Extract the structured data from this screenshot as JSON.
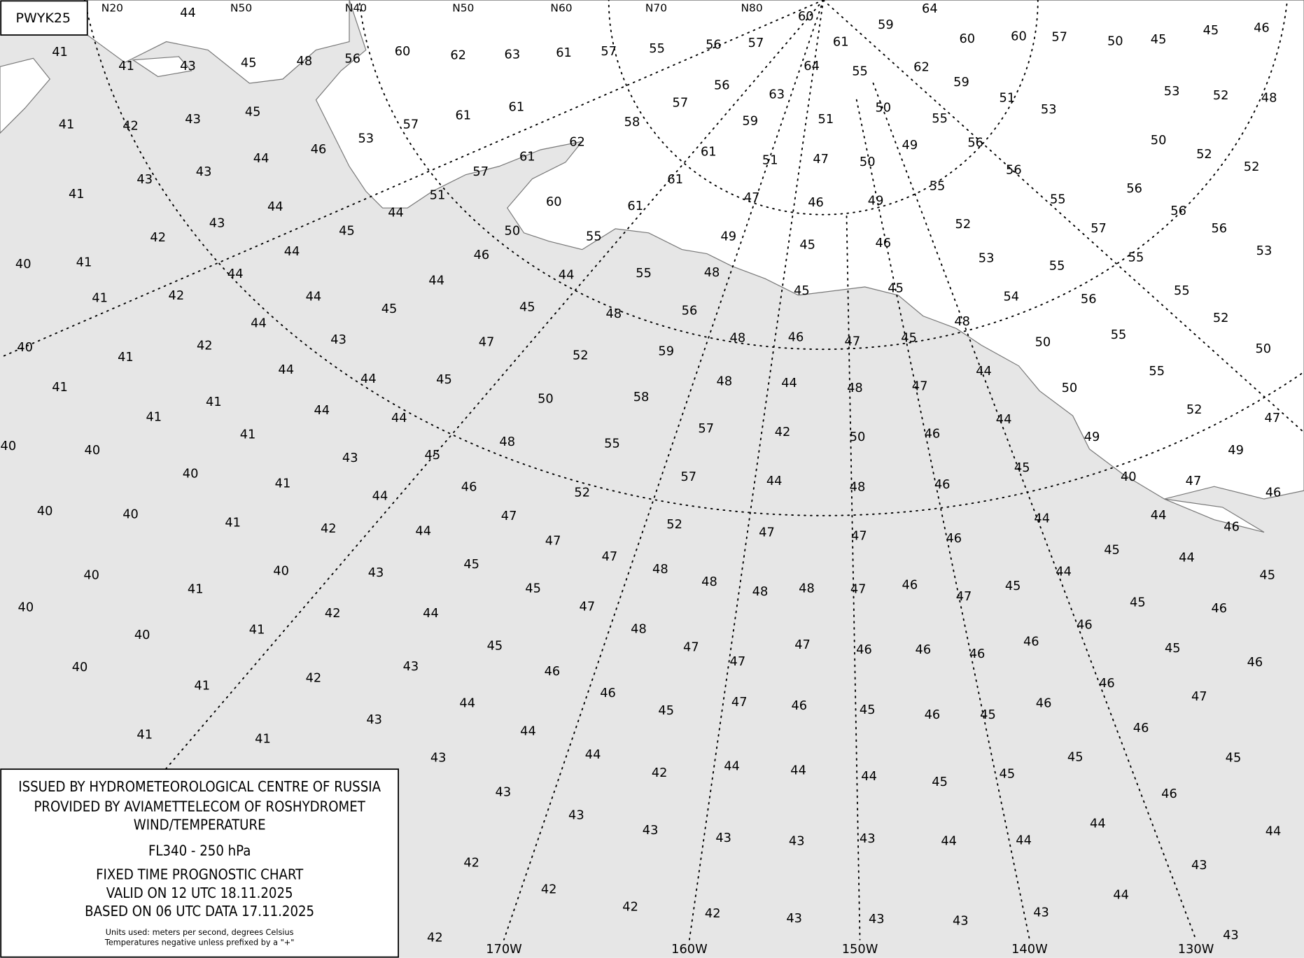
{
  "header": {
    "code": "PWYK25"
  },
  "legend": {
    "lines": [
      "ISSUED BY HYDROMETEOROLOGICAL CENTRE OF RUSSIA",
      "PROVIDED BY AVIAMETTELECOM OF ROSHYDROMET",
      "WIND/TEMPERATURE",
      "FL340 - 250 hPa",
      "FIXED TIME PROGNOSTIC CHART",
      "VALID ON 12 UTC 18.11.2025",
      "BASED ON 06 UTC DATA 17.11.2025"
    ],
    "notes": [
      "Units used: meters per second, degrees Celsius",
      "Temperatures negative unless prefixed by a \"+\""
    ]
  },
  "longitude_labels": [
    "170W",
    "160W",
    "150W",
    "140W",
    "130W"
  ],
  "latitude_labels": [
    "N20",
    "N50",
    "N40",
    "N50",
    "N60",
    "N70",
    "N80"
  ],
  "temperatures": [
    44,
    41,
    41,
    43,
    45,
    48,
    56,
    60,
    62,
    63,
    61,
    57,
    55,
    56,
    57,
    60,
    61,
    59,
    64,
    60,
    60,
    57,
    50,
    45,
    45,
    46,
    41,
    42,
    43,
    45,
    46,
    53,
    57,
    61,
    61,
    62,
    58,
    57,
    56,
    59,
    63,
    64,
    55,
    50,
    62,
    59,
    51,
    53,
    53,
    52,
    48,
    43,
    43,
    44,
    41,
    43,
    42,
    44,
    45,
    44,
    51,
    57,
    61,
    60,
    50,
    46,
    55,
    61,
    61,
    61,
    51,
    51,
    47,
    50,
    49,
    55,
    56,
    56,
    55,
    47,
    46,
    49,
    55,
    56,
    56,
    50,
    52,
    52,
    40,
    41,
    41,
    42,
    44,
    44,
    44,
    45,
    44,
    45,
    44,
    48,
    55,
    56,
    49,
    48,
    48,
    45,
    45,
    46,
    45,
    52,
    53,
    54,
    55,
    57,
    55,
    56,
    55,
    52,
    56,
    53,
    40,
    41,
    41,
    42,
    44,
    43,
    44,
    44,
    44,
    45,
    47,
    52,
    50,
    58,
    59,
    48,
    46,
    47,
    45,
    48,
    44,
    48,
    47,
    44,
    50,
    50,
    55,
    55,
    50,
    40,
    40,
    41,
    41,
    41,
    43,
    44,
    45,
    48,
    55,
    57,
    42,
    50,
    46,
    44,
    49,
    52,
    49,
    47,
    40,
    40,
    40,
    41,
    44,
    46,
    47,
    52,
    57,
    52,
    44,
    48,
    46,
    45,
    40,
    47,
    46,
    40,
    41,
    42,
    44,
    47,
    47,
    45,
    43,
    40,
    41,
    48,
    48,
    48,
    47,
    48,
    47,
    47,
    46,
    46,
    47,
    44,
    44,
    45,
    45,
    44,
    44,
    46,
    45,
    45,
    40,
    40,
    41,
    42,
    44,
    45,
    47,
    48,
    45,
    43,
    40,
    41,
    42,
    44,
    46,
    46,
    45,
    47,
    47,
    47,
    47,
    46,
    46,
    46,
    46,
    46,
    46,
    46,
    46,
    45,
    45,
    46,
    45,
    46,
    46,
    47,
    46,
    41,
    41,
    43,
    43,
    44,
    44,
    42,
    44,
    44,
    44,
    45,
    45,
    45,
    45,
    46,
    43,
    43,
    43,
    43,
    43,
    43,
    44,
    44,
    44,
    44,
    43,
    44,
    43,
    43,
    43,
    43,
    42,
    42,
    42,
    42,
    42,
    43
  ]
}
